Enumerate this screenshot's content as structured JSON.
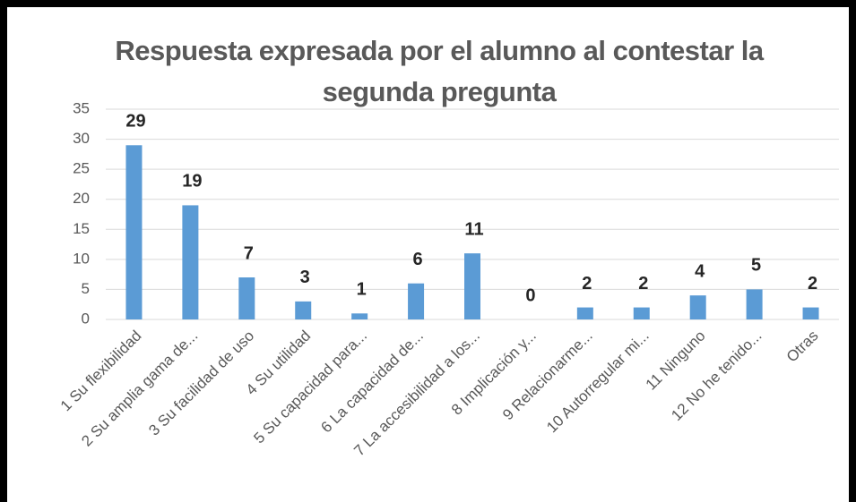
{
  "chart_data": {
    "type": "bar",
    "title": "Respuesta expresada por el alumno al contestar la segunda pregunta",
    "categories": [
      "1 Su flexibilidad",
      "2 Su  amplia gama de...",
      "3  Su facilidad de uso",
      "4  Su utilidad",
      "5 Su capacidad para...",
      "6 La capacidad de...",
      "7  La accesibilidad a los...",
      "8  Implicación y...",
      "9 Relacionarme...",
      "10 Autorregular mi...",
      "11 Ninguno",
      "12 No he tenido...",
      "Otras"
    ],
    "values": [
      29,
      19,
      7,
      3,
      1,
      6,
      11,
      0,
      2,
      2,
      4,
      5,
      2
    ],
    "color": "#5b9bd5",
    "ylim": [
      0,
      35
    ],
    "yticks": [
      0,
      5,
      10,
      15,
      20,
      25,
      30,
      35
    ],
    "grid": true
  }
}
